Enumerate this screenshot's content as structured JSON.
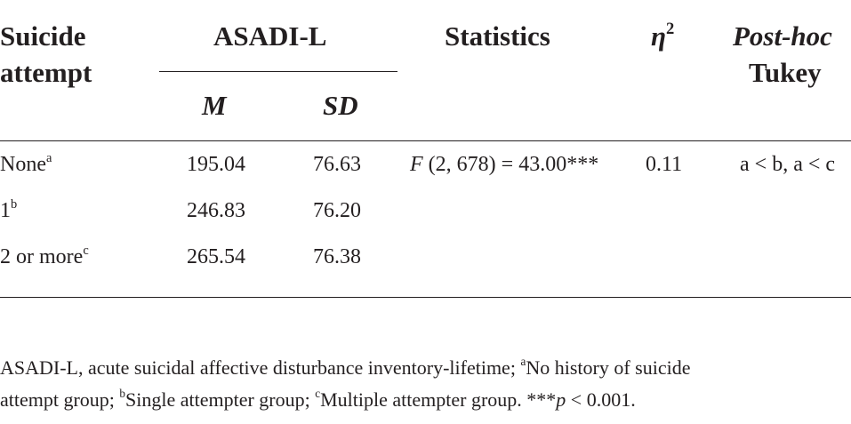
{
  "header": {
    "col1_line1": "Suicide",
    "col1_line2": "attempt",
    "group": "ASADI-L",
    "m": "M",
    "sd": "SD",
    "stats": "Statistics",
    "eta": "η",
    "eta_sup": "2",
    "posthoc": "Post-hoc",
    "tukey": "Tukey"
  },
  "rows": [
    {
      "label": "None",
      "sup": "a",
      "m": "195.04",
      "sd": "76.63",
      "stat_f": "F",
      "stat_rest": " (2, 678) = 43.00***",
      "eta": "0.11",
      "posthoc": "a < b, a < c"
    },
    {
      "label": "1",
      "sup": "b",
      "m": "246.83",
      "sd": "76.20"
    },
    {
      "label": "2 or more",
      "sup": "c",
      "m": "265.54",
      "sd": "76.38"
    }
  ],
  "footnote": {
    "l1a": "ASADI-L, acute suicidal affective disturbance inventory-lifetime; ",
    "l1a_sup": "a",
    "l1b": "No history of suicide",
    "l2a": "attempt group; ",
    "l2a_sup": "b",
    "l2b": "Single attempter group; ",
    "l2b_sup": "c",
    "l2c": "Multiple attempter group. ***",
    "l2_p": "p",
    "l2d": " < 0.001."
  }
}
